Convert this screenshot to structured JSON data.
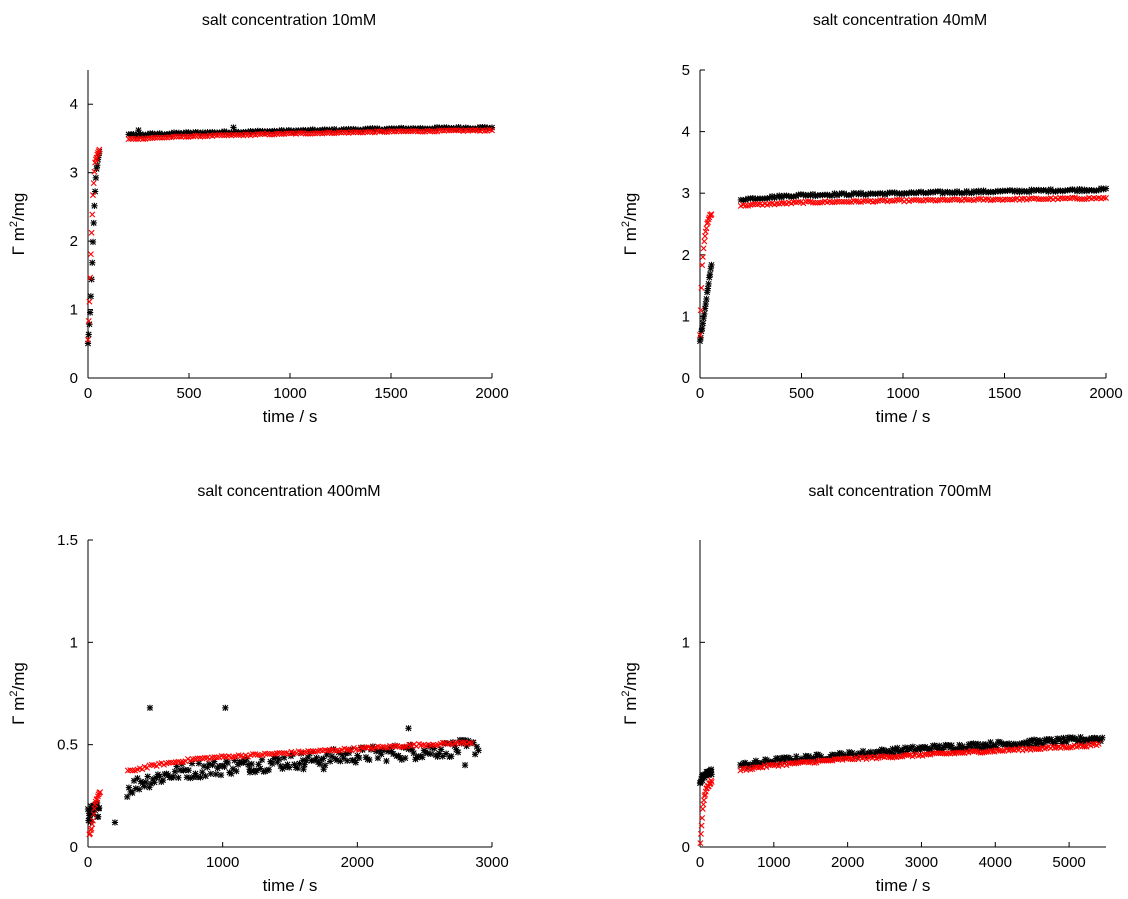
{
  "chart_data": [
    {
      "type": "scatter",
      "title": "salt concentration 10mM",
      "xlabel": "time / s",
      "ylabel": "Γ m²/mg",
      "ylabel_main": "Γ m",
      "ylabel_sup": "2",
      "ylabel_tail": "/mg",
      "xlim": [
        0,
        2000
      ],
      "ylim": [
        0,
        4.5
      ],
      "xticks": [
        "0",
        "500",
        "1000",
        "1500",
        "2000"
      ],
      "xtick_values": [
        0,
        500,
        1000,
        1500,
        2000
      ],
      "yticks": [
        "0",
        "1",
        "2",
        "3",
        "4"
      ],
      "ytick_values": [
        0,
        1,
        2,
        3,
        4
      ],
      "series": [
        {
          "marker": "star",
          "color": "#000000",
          "ramp": [
            [
              0,
              0.5
            ],
            [
              10,
              0.9
            ],
            [
              20,
              1.6
            ],
            [
              30,
              2.4
            ],
            [
              40,
              3.0
            ],
            [
              55,
              3.3
            ],
            [
              70,
              3.45
            ],
            [
              90,
              3.5
            ],
            [
              120,
              3.52
            ],
            [
              200,
              3.55
            ],
            [
              500,
              3.58
            ],
            [
              1000,
              3.61
            ],
            [
              1500,
              3.64
            ],
            [
              2000,
              3.66
            ]
          ],
          "n": 170,
          "noise": 0.015,
          "outliers": [
            [
              250,
              3.62
            ],
            [
              720,
              3.66
            ]
          ]
        },
        {
          "marker": "x",
          "color": "#ff0000",
          "ramp": [
            [
              0,
              0.55
            ],
            [
              8,
              1.2
            ],
            [
              15,
              1.9
            ],
            [
              25,
              2.7
            ],
            [
              35,
              3.15
            ],
            [
              50,
              3.3
            ],
            [
              70,
              3.4
            ],
            [
              100,
              3.45
            ],
            [
              200,
              3.49
            ],
            [
              500,
              3.53
            ],
            [
              1000,
              3.57
            ],
            [
              1500,
              3.6
            ],
            [
              2000,
              3.62
            ]
          ],
          "n": 170,
          "noise": 0.01,
          "outliers": []
        }
      ]
    },
    {
      "type": "scatter",
      "title": "salt concentration 40mM",
      "xlabel": "time / s",
      "ylabel": "Γ m²/mg",
      "ylabel_main": "Γ m",
      "ylabel_sup": "2",
      "ylabel_tail": "/mg",
      "xlim": [
        0,
        2000
      ],
      "ylim": [
        0,
        5
      ],
      "xticks": [
        "0",
        "500",
        "1000",
        "1500",
        "2000"
      ],
      "xtick_values": [
        0,
        500,
        1000,
        1500,
        2000
      ],
      "yticks": [
        "0",
        "1",
        "2",
        "3",
        "4",
        "5"
      ],
      "ytick_values": [
        0,
        1,
        2,
        3,
        4,
        5
      ],
      "series": [
        {
          "marker": "star",
          "color": "#000000",
          "ramp": [
            [
              0,
              0.6
            ],
            [
              20,
              1.0
            ],
            [
              40,
              1.5
            ],
            [
              60,
              1.9
            ],
            [
              80,
              2.3
            ],
            [
              100,
              2.6
            ],
            [
              120,
              2.75
            ],
            [
              150,
              2.85
            ],
            [
              200,
              2.9
            ],
            [
              500,
              2.97
            ],
            [
              1000,
              3.0
            ],
            [
              1500,
              3.03
            ],
            [
              2000,
              3.06
            ]
          ],
          "n": 170,
          "noise": 0.02,
          "outliers": []
        },
        {
          "marker": "x",
          "color": "#ff0000",
          "ramp": [
            [
              0,
              0.7
            ],
            [
              10,
              1.8
            ],
            [
              20,
              2.2
            ],
            [
              35,
              2.5
            ],
            [
              50,
              2.65
            ],
            [
              80,
              2.72
            ],
            [
              120,
              2.77
            ],
            [
              200,
              2.8
            ],
            [
              500,
              2.85
            ],
            [
              1000,
              2.88
            ],
            [
              1500,
              2.9
            ],
            [
              2000,
              2.92
            ]
          ],
          "n": 170,
          "noise": 0.015,
          "outliers": []
        }
      ]
    },
    {
      "type": "scatter",
      "title": "salt concentration 400mM",
      "xlabel": "time / s",
      "ylabel": "Γ m²/mg",
      "ylabel_main": "Γ m",
      "ylabel_sup": "2",
      "ylabel_tail": "/mg",
      "xlim": [
        0,
        3000
      ],
      "ylim": [
        0,
        1.5
      ],
      "xticks": [
        "0",
        "1000",
        "2000",
        "3000"
      ],
      "xtick_values": [
        0,
        1000,
        2000,
        3000
      ],
      "yticks": [
        "0",
        "0.5",
        "1",
        "1.5"
      ],
      "ytick_values": [
        0,
        0.5,
        1,
        1.5
      ],
      "series": [
        {
          "marker": "star",
          "color": "#000000",
          "ramp": [
            [
              0,
              0.15
            ],
            [
              100,
              0.2
            ],
            [
              200,
              0.25
            ],
            [
              400,
              0.32
            ],
            [
              700,
              0.37
            ],
            [
              1000,
              0.39
            ],
            [
              1500,
              0.42
            ],
            [
              2000,
              0.45
            ],
            [
              2500,
              0.47
            ],
            [
              2900,
              0.49
            ]
          ],
          "n": 230,
          "noise": 0.04,
          "outliers": [
            [
              200,
              0.12
            ],
            [
              460,
              0.68
            ],
            [
              1020,
              0.68
            ],
            [
              2380,
              0.58
            ],
            [
              1200,
              0.38
            ],
            [
              1600,
              0.38
            ],
            [
              1750,
              0.38
            ],
            [
              2800,
              0.4
            ]
          ]
        },
        {
          "marker": "x",
          "color": "#ff0000",
          "ramp": [
            [
              10,
              0.06
            ],
            [
              30,
              0.1
            ],
            [
              50,
              0.2
            ],
            [
              80,
              0.26
            ],
            [
              150,
              0.31
            ],
            [
              300,
              0.37
            ],
            [
              500,
              0.4
            ],
            [
              800,
              0.43
            ],
            [
              1000,
              0.44
            ],
            [
              1500,
              0.46
            ],
            [
              2000,
              0.48
            ],
            [
              2500,
              0.5
            ],
            [
              2850,
              0.51
            ]
          ],
          "n": 160,
          "noise": 0.006,
          "outliers": []
        }
      ]
    },
    {
      "type": "scatter",
      "title": "salt concentration 700mM",
      "xlabel": "time / s",
      "ylabel": "Γ m²/mg",
      "ylabel_main": "Γ m",
      "ylabel_sup": "2",
      "ylabel_tail": "/mg",
      "xlim": [
        0,
        5500
      ],
      "ylim": [
        0,
        1.5
      ],
      "xticks": [
        "0",
        "1000",
        "2000",
        "3000",
        "4000",
        "5000"
      ],
      "xtick_values": [
        0,
        1000,
        2000,
        3000,
        4000,
        5000
      ],
      "yticks": [
        "0",
        "1"
      ],
      "ytick_values": [
        0,
        1
      ],
      "series": [
        {
          "marker": "star",
          "color": "#000000",
          "ramp": [
            [
              0,
              0.32
            ],
            [
              100,
              0.36
            ],
            [
              300,
              0.39
            ],
            [
              600,
              0.4
            ],
            [
              1000,
              0.42
            ],
            [
              2000,
              0.45
            ],
            [
              3000,
              0.48
            ],
            [
              4000,
              0.5
            ],
            [
              5000,
              0.52
            ],
            [
              5450,
              0.53
            ]
          ],
          "n": 260,
          "noise": 0.015,
          "outliers": []
        },
        {
          "marker": "x",
          "color": "#ff0000",
          "ramp": [
            [
              5,
              0.02
            ],
            [
              20,
              0.1
            ],
            [
              40,
              0.2
            ],
            [
              80,
              0.28
            ],
            [
              150,
              0.32
            ],
            [
              300,
              0.35
            ],
            [
              600,
              0.38
            ],
            [
              1000,
              0.4
            ],
            [
              2000,
              0.43
            ],
            [
              3000,
              0.45
            ],
            [
              4000,
              0.47
            ],
            [
              5000,
              0.49
            ],
            [
              5400,
              0.5
            ]
          ],
          "n": 200,
          "noise": 0.006,
          "outliers": []
        }
      ]
    }
  ]
}
